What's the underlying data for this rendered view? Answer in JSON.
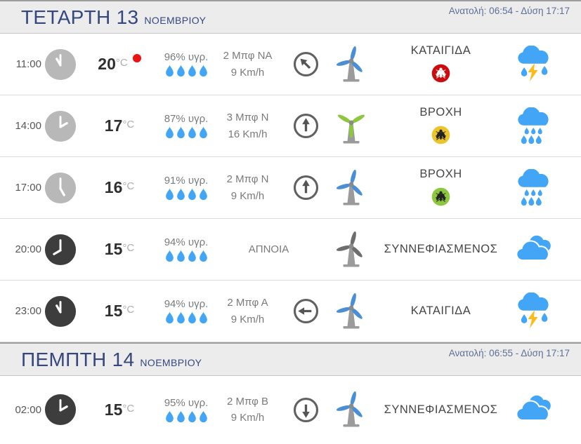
{
  "labels": {
    "temp_unit": "°C",
    "humidity_suffix": "υγρ."
  },
  "colors": {
    "clock_light": "#b8b8b8",
    "clock_dark": "#3d3d3d",
    "accent_blue": "#42a5f5",
    "lightning": "#fcbb1b",
    "record_dot": "#ee1111",
    "mosquito": {
      "red": "#cb0c0f",
      "yellow": "#ecc52c",
      "green": "#8dc63f"
    },
    "turbine": {
      "blue": "#4a8fd6",
      "green": "#8dc63f",
      "gray": "#6d6d6d"
    },
    "day_title": "#35477d",
    "sun_text": "#5d6f95"
  },
  "turbine_layouts": {
    "standard": [
      15,
      135,
      255
    ],
    "y": [
      -60,
      60,
      180
    ]
  },
  "days": [
    {
      "title": "ΤΕΤΑΡΤΗ 13",
      "month": "ΝΟΕΜΒΡΙΟΥ",
      "sun": "Ανατολή: 06:54 - Δύση 17:17",
      "rows": [
        {
          "time": "11:00",
          "clock": "light",
          "temp": "20",
          "record": true,
          "humidity": "96% υγρ.",
          "wind1": "2 Μπφ ΝΑ",
          "wind2": "9 Km/h",
          "dir": 315,
          "turbine": {
            "color": "blue",
            "layout": "standard"
          },
          "condition": "ΚΑΤΑΙΓΙΔΑ",
          "mosquito": "red",
          "icon": "storm"
        },
        {
          "time": "14:00",
          "clock": "light",
          "temp": "17",
          "record": false,
          "humidity": "87% υγρ.",
          "wind1": "3 Μπφ Ν",
          "wind2": "16 Km/h",
          "dir": 0,
          "turbine": {
            "color": "green",
            "layout": "y"
          },
          "condition": "ΒΡΟΧΗ",
          "mosquito": "yellow",
          "icon": "rain"
        },
        {
          "time": "17:00",
          "clock": "light",
          "temp": "16",
          "record": false,
          "humidity": "91% υγρ.",
          "wind1": "2 Μπφ Ν",
          "wind2": "9 Km/h",
          "dir": 0,
          "turbine": {
            "color": "blue",
            "layout": "standard"
          },
          "condition": "ΒΡΟΧΗ",
          "mosquito": "green",
          "icon": "rain"
        },
        {
          "time": "20:00",
          "clock": "dark",
          "temp": "15",
          "record": false,
          "humidity": "94% υγρ.",
          "wind1": "ΑΠΝΟΙΑ",
          "wind2": null,
          "dir": null,
          "turbine": {
            "color": "gray",
            "layout": "standard"
          },
          "condition": "ΣΥΝΝΕΦΙΑΣΜΕΝΟΣ",
          "mosquito": null,
          "icon": "cloudy"
        },
        {
          "time": "23:00",
          "clock": "dark",
          "temp": "15",
          "record": false,
          "humidity": "94% υγρ.",
          "wind1": "2 Μπφ Α",
          "wind2": "9 Km/h",
          "dir": 270,
          "turbine": {
            "color": "blue",
            "layout": "standard"
          },
          "condition": "ΚΑΤΑΙΓΙΔΑ",
          "mosquito": null,
          "icon": "storm"
        }
      ]
    },
    {
      "title": "ΠΕΜΠΤΗ 14",
      "month": "ΝΟΕΜΒΡΙΟΥ",
      "sun": "Ανατολή: 06:55 - Δύση 17:17",
      "rows": [
        {
          "time": "02:00",
          "clock": "dark",
          "temp": "15",
          "record": false,
          "humidity": "95% υγρ.",
          "wind1": "2 Μπφ Β",
          "wind2": "9 Km/h",
          "dir": 180,
          "turbine": {
            "color": "blue",
            "layout": "standard"
          },
          "condition": "ΣΥΝΝΕΦΙΑΣΜΕΝΟΣ",
          "mosquito": null,
          "icon": "cloudy"
        }
      ]
    }
  ]
}
